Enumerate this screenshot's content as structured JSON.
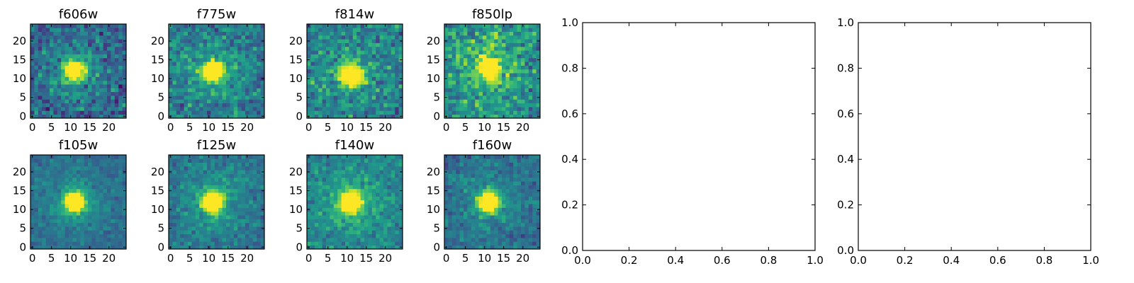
{
  "chart_data": [
    {
      "type": "heatmap",
      "title": "f606w",
      "xticks": [
        "0",
        "5",
        "10",
        "15",
        "20"
      ],
      "yticks": [
        "0",
        "5",
        "10",
        "15",
        "20"
      ],
      "xlim": [
        -0.5,
        24.5
      ],
      "ylim": [
        -0.5,
        24.5
      ],
      "source_center": [
        11,
        12
      ],
      "source_peak": 1.0,
      "background_level": 0.32,
      "noise": 0.16,
      "colormap": "viridis"
    },
    {
      "type": "heatmap",
      "title": "f775w",
      "xticks": [
        "0",
        "5",
        "10",
        "15",
        "20"
      ],
      "yticks": [
        "0",
        "5",
        "10",
        "15",
        "20"
      ],
      "xlim": [
        -0.5,
        24.5
      ],
      "ylim": [
        -0.5,
        24.5
      ],
      "source_center": [
        11,
        12
      ],
      "source_peak": 1.0,
      "background_level": 0.4,
      "noise": 0.15,
      "colormap": "viridis"
    },
    {
      "type": "heatmap",
      "title": "f814w",
      "xticks": [
        "0",
        "5",
        "10",
        "15",
        "20"
      ],
      "yticks": [
        "0",
        "5",
        "10",
        "15",
        "20"
      ],
      "xlim": [
        -0.5,
        24.5
      ],
      "ylim": [
        -0.5,
        24.5
      ],
      "source_center": [
        11,
        11
      ],
      "source_peak": 1.0,
      "background_level": 0.42,
      "noise": 0.17,
      "colormap": "viridis"
    },
    {
      "type": "heatmap",
      "title": "f850lp",
      "xticks": [
        "0",
        "5",
        "10",
        "15",
        "20"
      ],
      "yticks": [
        "0",
        "5",
        "10",
        "15",
        "20"
      ],
      "xlim": [
        -0.5,
        24.5
      ],
      "ylim": [
        -0.5,
        24.5
      ],
      "source_center": [
        11,
        13
      ],
      "source_peak": 1.0,
      "background_level": 0.5,
      "noise": 0.19,
      "colormap": "viridis"
    },
    {
      "type": "heatmap",
      "title": "f105w",
      "xticks": [
        "0",
        "5",
        "10",
        "15",
        "20"
      ],
      "yticks": [
        "0",
        "5",
        "10",
        "15",
        "20"
      ],
      "xlim": [
        -0.5,
        24.5
      ],
      "ylim": [
        -0.5,
        24.5
      ],
      "source_center": [
        11,
        12
      ],
      "source_peak": 1.0,
      "background_level": 0.35,
      "noise": 0.08,
      "colormap": "viridis"
    },
    {
      "type": "heatmap",
      "title": "f125w",
      "xticks": [
        "0",
        "5",
        "10",
        "15",
        "20"
      ],
      "yticks": [
        "0",
        "5",
        "10",
        "15",
        "20"
      ],
      "xlim": [
        -0.5,
        24.5
      ],
      "ylim": [
        -0.5,
        24.5
      ],
      "source_center": [
        11,
        12
      ],
      "source_peak": 1.0,
      "background_level": 0.38,
      "noise": 0.1,
      "colormap": "viridis"
    },
    {
      "type": "heatmap",
      "title": "f140w",
      "xticks": [
        "0",
        "5",
        "10",
        "15",
        "20"
      ],
      "yticks": [
        "0",
        "5",
        "10",
        "15",
        "20"
      ],
      "xlim": [
        -0.5,
        24.5
      ],
      "ylim": [
        -0.5,
        24.5
      ],
      "source_center": [
        11,
        12
      ],
      "source_peak": 1.0,
      "background_level": 0.45,
      "noise": 0.11,
      "colormap": "viridis"
    },
    {
      "type": "heatmap",
      "title": "f160w",
      "xticks": [
        "0",
        "5",
        "10",
        "15",
        "20"
      ],
      "yticks": [
        "0",
        "5",
        "10",
        "15",
        "20"
      ],
      "xlim": [
        -0.5,
        24.5
      ],
      "ylim": [
        -0.5,
        24.5
      ],
      "source_center": [
        11,
        12
      ],
      "source_peak": 1.0,
      "background_level": 0.35,
      "noise": 0.1,
      "colormap": "viridis"
    },
    {
      "type": "scatter",
      "title": "",
      "x": [],
      "y": [],
      "xticks": [
        "0.0",
        "0.2",
        "0.4",
        "0.6",
        "0.8",
        "1.0"
      ],
      "yticks": [
        "0.0",
        "0.2",
        "0.4",
        "0.6",
        "0.8",
        "1.0"
      ],
      "xlim": [
        0,
        1
      ],
      "ylim": [
        0,
        1
      ]
    },
    {
      "type": "scatter",
      "title": "",
      "x": [],
      "y": [],
      "xticks": [
        "0.0",
        "0.2",
        "0.4",
        "0.6",
        "0.8",
        "1.0"
      ],
      "yticks": [
        "0.0",
        "0.2",
        "0.4",
        "0.6",
        "0.8",
        "1.0"
      ],
      "xlim": [
        0,
        1
      ],
      "ylim": [
        0,
        1
      ]
    }
  ]
}
